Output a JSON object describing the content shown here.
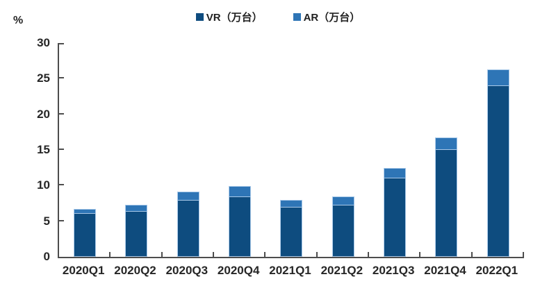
{
  "chart_data": {
    "type": "bar",
    "stacked": true,
    "title": "",
    "xlabel": "",
    "ylabel": "%",
    "ylim": [
      0,
      30
    ],
    "ytick_step": 5,
    "grid": false,
    "legend_position": "top-center",
    "categories": [
      "2020Q1",
      "2020Q2",
      "2020Q3",
      "2020Q4",
      "2021Q1",
      "2021Q2",
      "2021Q3",
      "2021Q4",
      "2022Q1"
    ],
    "series": [
      {
        "name": "VR（万台）",
        "color": "#0e4c7f",
        "values": [
          6.0,
          6.3,
          7.9,
          8.4,
          6.9,
          7.2,
          11.0,
          15.0,
          24.0
        ]
      },
      {
        "name": "AR（万台）",
        "color": "#2e75b6",
        "values": [
          0.7,
          1.0,
          1.3,
          1.5,
          1.1,
          1.3,
          1.5,
          1.8,
          2.3
        ]
      }
    ],
    "totals": [
      6.7,
      7.3,
      9.2,
      9.9,
      8.0,
      8.5,
      12.5,
      16.8,
      26.3
    ],
    "colors": {
      "vr_fill": "#0e4c7f",
      "ar_fill": "#2e75b6",
      "segment_border": "#a9c9e9",
      "axis": "#4d4d4d",
      "text": "#262626"
    }
  }
}
